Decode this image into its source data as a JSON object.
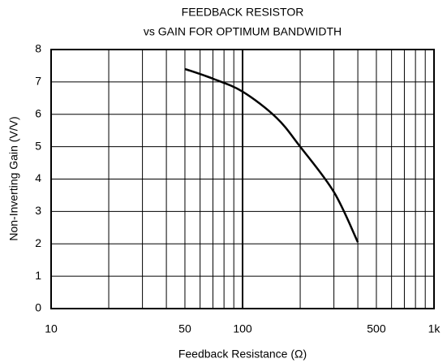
{
  "chart_data": {
    "type": "line",
    "title": [
      "FEEDBACK RESISTOR",
      "vs GAIN FOR OPTIMUM BANDWIDTH"
    ],
    "x_label": "Feedback Resistance (Ω)",
    "y_label": "Non-Inverting Gain (V/V)",
    "x": [
      50,
      70,
      100,
      150,
      200,
      300,
      400
    ],
    "series": [
      {
        "color": "#000000",
        "values": [
          7.4,
          7.1,
          6.7,
          5.9,
          5.0,
          3.6,
          2.05
        ]
      }
    ],
    "xscale": "log",
    "xlim": [
      10,
      1000
    ],
    "xticks": [
      10,
      50,
      100,
      500,
      {
        "value": 1000,
        "label": "1k"
      }
    ],
    "xminor": [
      20,
      30,
      40,
      60,
      70,
      80,
      90,
      200,
      300,
      400,
      600,
      700,
      800,
      900
    ],
    "ylim": [
      0,
      8
    ],
    "yticks": [
      0,
      1,
      2,
      3,
      4,
      5,
      6,
      7,
      8
    ],
    "grid": true
  }
}
